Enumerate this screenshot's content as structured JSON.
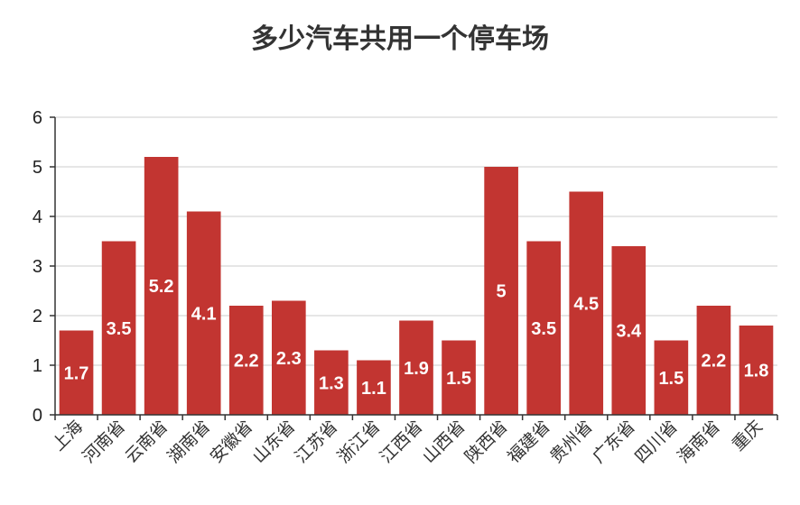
{
  "chart_data": {
    "type": "bar",
    "title": "多少汽车共用一个停车场",
    "xlabel": "",
    "ylabel": "",
    "ylim": [
      0,
      6
    ],
    "yticks": [
      0,
      1,
      2,
      3,
      4,
      5,
      6
    ],
    "grid": true,
    "categories": [
      "上海",
      "河南省",
      "云南省",
      "湖南省",
      "安徽省",
      "山东省",
      "江苏省",
      "浙江省",
      "江西省",
      "山西省",
      "陕西省",
      "福建省",
      "贵州省",
      "广东省",
      "四川省",
      "海南省",
      "重庆"
    ],
    "values": [
      1.7,
      3.5,
      5.2,
      4.1,
      2.2,
      2.3,
      1.3,
      1.1,
      1.9,
      1.5,
      5,
      3.5,
      4.5,
      3.4,
      1.5,
      2.2,
      1.8
    ],
    "bar_color": "#c23531"
  }
}
